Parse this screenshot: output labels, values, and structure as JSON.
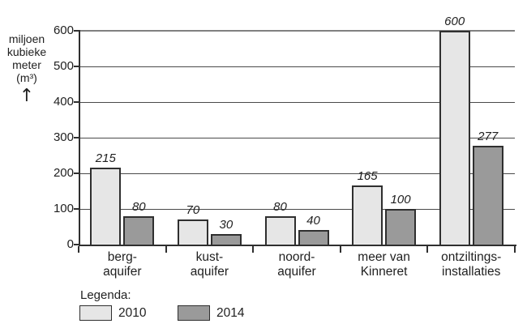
{
  "figure": {
    "y_axis_title_lines": [
      "miljoen",
      "kubieke",
      "meter",
      "(m³)"
    ],
    "y_axis_arrow": "↑"
  },
  "legend": {
    "title": "Legenda:"
  },
  "chart_data": {
    "type": "bar",
    "title": "",
    "ylabel": "miljoen kubieke meter (m³)",
    "categories": [
      "berg-aquifer",
      "kust-aquifer",
      "noord-aquifer",
      "meer van Kinneret",
      "ontziltings-installaties"
    ],
    "category_label_lines": [
      [
        "berg-",
        "aquifer"
      ],
      [
        "kust-",
        "aquifer"
      ],
      [
        "noord-",
        "aquifer"
      ],
      [
        "meer van",
        "Kinneret"
      ],
      [
        "ontziltings-",
        "installaties"
      ]
    ],
    "series": [
      {
        "name": "2010",
        "color": "#e6e6e6",
        "values": [
          215,
          70,
          80,
          165,
          600
        ]
      },
      {
        "name": "2014",
        "color": "#9a9a9a",
        "values": [
          80,
          30,
          40,
          100,
          277
        ]
      }
    ],
    "ylim": [
      0,
      600
    ],
    "yticks": [
      0,
      100,
      200,
      300,
      400,
      500,
      600
    ],
    "grid": true,
    "value_labels": true,
    "legend_position": "bottom"
  },
  "colors": {
    "bar_2010": "#e6e6e6",
    "bar_2014": "#9a9a9a",
    "bar_border": "#2f2f2f",
    "gridline": "#4a4a4a",
    "top_line": "#808080",
    "axis": "#2f2f2f",
    "text": "#1f1f1f"
  }
}
